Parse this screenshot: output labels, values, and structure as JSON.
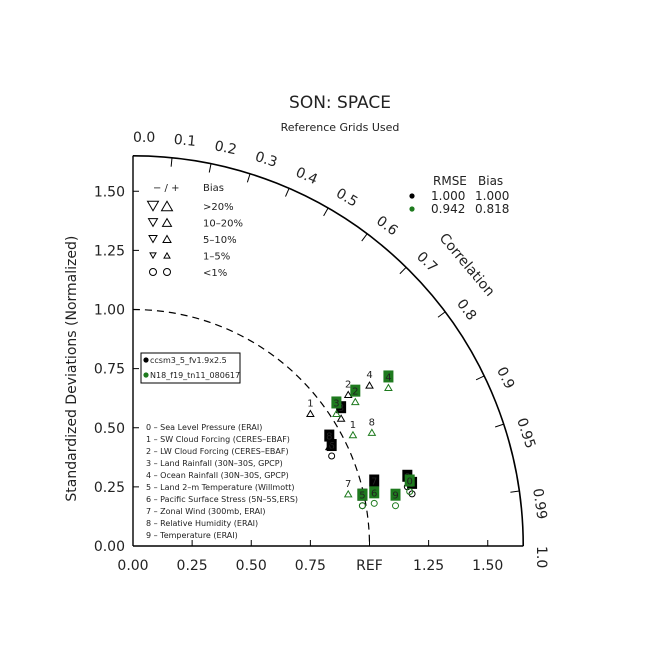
{
  "chart_data": {
    "type": "scatter",
    "subtype": "taylor-diagram",
    "title": "SON: SPACE",
    "subtitle": "Reference Grids Used",
    "ylabel": "Standardized Deviations (Normalized)",
    "corr_label": "Correlation",
    "ref_label": "REF",
    "xlim": [
      0,
      1.65
    ],
    "ylim": [
      0,
      1.65
    ],
    "x_ticks": [
      "0.00",
      "0.25",
      "0.50",
      "0.75",
      "REF",
      "1.25",
      "1.50"
    ],
    "x_tick_values": [
      0,
      0.25,
      0.5,
      0.75,
      1.0,
      1.25,
      1.5
    ],
    "y_ticks": [
      "0.00",
      "0.25",
      "0.50",
      "0.75",
      "1.00",
      "1.25",
      "1.50"
    ],
    "y_tick_values": [
      0,
      0.25,
      0.5,
      0.75,
      1.0,
      1.25,
      1.5
    ],
    "corr_ticks": [
      "0.0",
      "0.1",
      "0.2",
      "0.3",
      "0.4",
      "0.5",
      "0.6",
      "0.7",
      "0.8",
      "0.9",
      "0.95",
      "0.99",
      "1.0"
    ],
    "corr_tick_values": [
      0,
      0.1,
      0.2,
      0.3,
      0.4,
      0.5,
      0.6,
      0.7,
      0.8,
      0.9,
      0.95,
      0.99,
      1.0
    ],
    "bias_legend": {
      "header": [
        "− / +",
        "Bias"
      ],
      "rows": [
        ">20%",
        "10–20%",
        "5–10%",
        "1–5%",
        "<1%"
      ]
    },
    "rmse_bias_table": {
      "header": [
        "RMSE",
        "Bias"
      ],
      "rows": [
        {
          "rmse": "1.000",
          "bias": "1.000",
          "color": "#000000"
        },
        {
          "rmse": "0.942",
          "bias": "0.818",
          "color": "#1e7a1e"
        }
      ]
    },
    "series": [
      {
        "name": "ccsm3_5_fv1.9x2.5",
        "color": "#000000",
        "points": [
          {
            "id": "0",
            "x": 1.16,
            "y": 0.28
          },
          {
            "id": "1",
            "x": 0.75,
            "y": 0.59
          },
          {
            "id": "2",
            "x": 0.91,
            "y": 0.67
          },
          {
            "id": "3",
            "x": 0.88,
            "y": 0.57
          },
          {
            "id": "4",
            "x": 1.0,
            "y": 0.71
          },
          {
            "id": "5",
            "x": 0.97,
            "y": 0.2
          },
          {
            "id": "6",
            "x": 0.84,
            "y": 0.41
          },
          {
            "id": "7",
            "x": 1.02,
            "y": 0.26
          },
          {
            "id": "8",
            "x": 0.83,
            "y": 0.45
          },
          {
            "id": "9",
            "x": 1.18,
            "y": 0.25
          }
        ]
      },
      {
        "name": "N18_f19_tn11_080617",
        "color": "#1e7a1e",
        "points": [
          {
            "id": "0",
            "x": 1.17,
            "y": 0.26
          },
          {
            "id": "1",
            "x": 0.93,
            "y": 0.5
          },
          {
            "id": "2",
            "x": 0.94,
            "y": 0.64
          },
          {
            "id": "3",
            "x": 0.86,
            "y": 0.59
          },
          {
            "id": "4",
            "x": 1.08,
            "y": 0.7
          },
          {
            "id": "5",
            "x": 0.97,
            "y": 0.2
          },
          {
            "id": "6",
            "x": 1.02,
            "y": 0.21
          },
          {
            "id": "7",
            "x": 0.91,
            "y": 0.25
          },
          {
            "id": "8",
            "x": 1.01,
            "y": 0.51
          },
          {
            "id": "9",
            "x": 1.11,
            "y": 0.2
          }
        ]
      }
    ],
    "variables": [
      "0 – Sea Level Pressure (ERAI)",
      "1 – SW Cloud Forcing (CERES–EBAF)",
      "2 – LW Cloud Forcing (CERES–EBAF)",
      "3 – Land Rainfall (30N–30S, GPCP)",
      "4 – Ocean Rainfall (30N–30S, GPCP)",
      "5 – Land 2–m Temperature (Willmott)",
      "6 – Pacific Surface Stress (5N–5S,ERS)",
      "7 – Zonal Wind (300mb, ERAI)",
      "8 – Relative Humidity (ERAI)",
      "9 – Temperature (ERAI)"
    ]
  }
}
